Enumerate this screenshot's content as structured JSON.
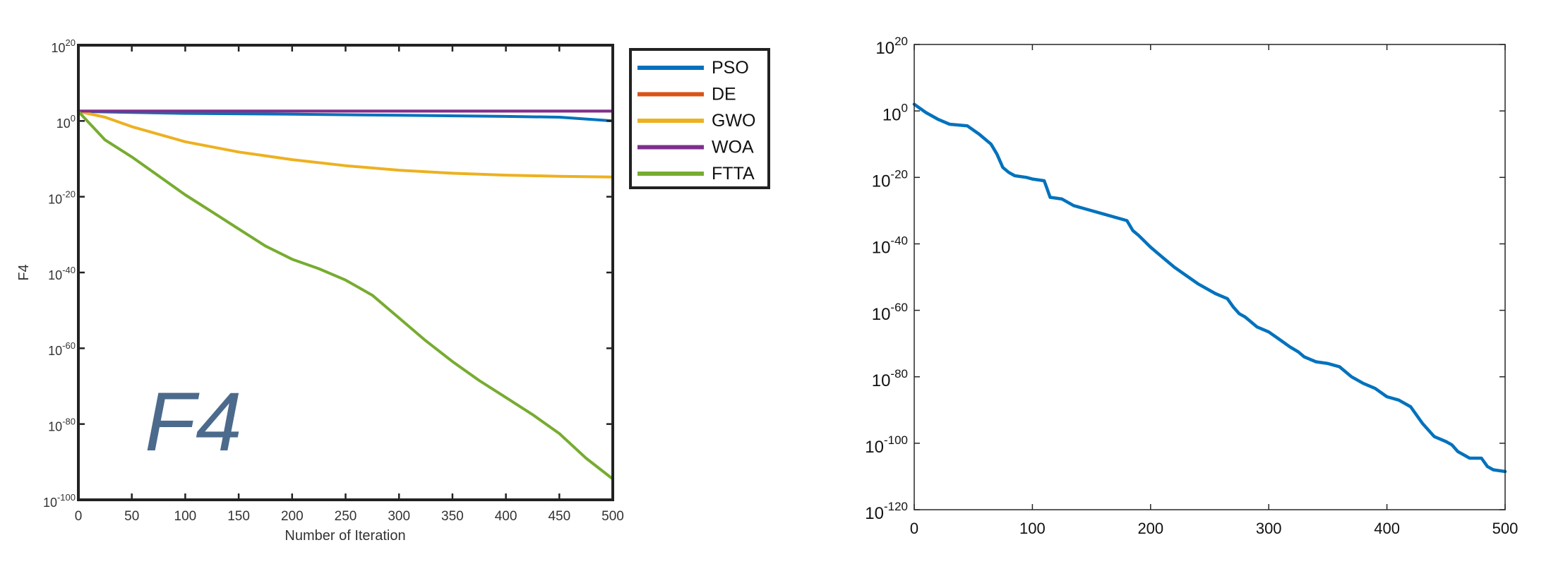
{
  "chart_data": [
    {
      "type": "line",
      "title": "",
      "xlabel": "Number of Iteration",
      "ylabel": "F4",
      "annotation": "F4",
      "yscale": "log",
      "xlim": [
        0,
        500
      ],
      "ylim_exponent": [
        -100,
        20
      ],
      "x_ticks": [
        "0",
        "50",
        "100",
        "150",
        "200",
        "250",
        "300",
        "350",
        "400",
        "450",
        "500"
      ],
      "y_tick_base": "10",
      "y_tick_exponents": [
        "20",
        "0",
        "-20",
        "-40",
        "-60",
        "-80",
        "-100"
      ],
      "legend_position": "outside-right",
      "grid": false,
      "y_values_are": "log10",
      "series": [
        {
          "name": "PSO",
          "color": "#0072BD",
          "x": [
            0,
            100,
            200,
            300,
            400,
            450,
            500
          ],
          "y": [
            2.5,
            2.0,
            1.8,
            1.5,
            1.2,
            1.0,
            0.0
          ]
        },
        {
          "name": "DE",
          "color": "#D95319",
          "x": [
            0,
            250,
            500
          ],
          "y": [
            2.6,
            2.6,
            2.6
          ]
        },
        {
          "name": "GWO",
          "color": "#EDB120",
          "x": [
            0,
            25,
            50,
            100,
            150,
            200,
            250,
            300,
            350,
            400,
            450,
            500
          ],
          "y": [
            2.5,
            1.0,
            -1.5,
            -5.5,
            -8.2,
            -10.2,
            -11.8,
            -13.0,
            -13.8,
            -14.3,
            -14.6,
            -14.8
          ]
        },
        {
          "name": "WOA",
          "color": "#7E2F8E",
          "x": [
            0,
            250,
            500
          ],
          "y": [
            2.6,
            2.6,
            2.6
          ]
        },
        {
          "name": "FTTA",
          "color": "#77AC30",
          "x": [
            0,
            25,
            50,
            75,
            100,
            125,
            150,
            175,
            200,
            225,
            250,
            275,
            300,
            325,
            350,
            375,
            400,
            425,
            450,
            475,
            500
          ],
          "y": [
            2.5,
            -5.0,
            -9.5,
            -14.5,
            -19.5,
            -24.0,
            -28.5,
            -33.0,
            -36.5,
            -39.0,
            -42.0,
            -46.0,
            -52.0,
            -58.0,
            -63.5,
            -68.5,
            -73.0,
            -77.5,
            -82.5,
            -89.0,
            -94.5
          ]
        }
      ]
    },
    {
      "type": "line",
      "title": "",
      "xlabel": "",
      "ylabel": "",
      "yscale": "log",
      "xlim": [
        0,
        500
      ],
      "ylim_exponent": [
        -120,
        20
      ],
      "x_ticks": [
        "0",
        "100",
        "200",
        "300",
        "400",
        "500"
      ],
      "y_tick_base": "10",
      "y_tick_exponents": [
        "20",
        "0",
        "-20",
        "-40",
        "-60",
        "-80",
        "-100",
        "-120"
      ],
      "grid": false,
      "y_values_are": "log10",
      "series": [
        {
          "color": "#0072BD",
          "x": [
            0,
            10,
            20,
            30,
            45,
            55,
            65,
            70,
            75,
            80,
            85,
            95,
            100,
            110,
            112,
            115,
            125,
            135,
            145,
            160,
            180,
            185,
            190,
            200,
            210,
            220,
            240,
            255,
            265,
            270,
            275,
            280,
            285,
            290,
            300,
            310,
            318,
            325,
            330,
            340,
            350,
            360,
            370,
            380,
            390,
            400,
            410,
            420,
            430,
            440,
            450,
            455,
            460,
            470,
            480,
            485,
            490,
            500
          ],
          "y": [
            2.0,
            -0.5,
            -2.5,
            -4.0,
            -4.5,
            -7.0,
            -10.0,
            -13.0,
            -17.0,
            -18.5,
            -19.5,
            -20.0,
            -20.5,
            -21.0,
            -23.0,
            -26.0,
            -26.5,
            -28.5,
            -29.5,
            -31.0,
            -33.0,
            -36.0,
            -37.5,
            -41.0,
            -44.0,
            -47.0,
            -52.0,
            -55.0,
            -56.5,
            -59.0,
            -61.0,
            -62.0,
            -63.5,
            -65.0,
            -66.5,
            -69.0,
            -71.0,
            -72.5,
            -74.0,
            -75.5,
            -76.0,
            -77.0,
            -80.0,
            -82.0,
            -83.5,
            -86.0,
            -87.0,
            -89.0,
            -94.0,
            -98.0,
            -99.5,
            -100.5,
            -102.5,
            -104.5,
            -104.5,
            -107.0,
            -108.0,
            -108.5
          ]
        }
      ]
    }
  ]
}
